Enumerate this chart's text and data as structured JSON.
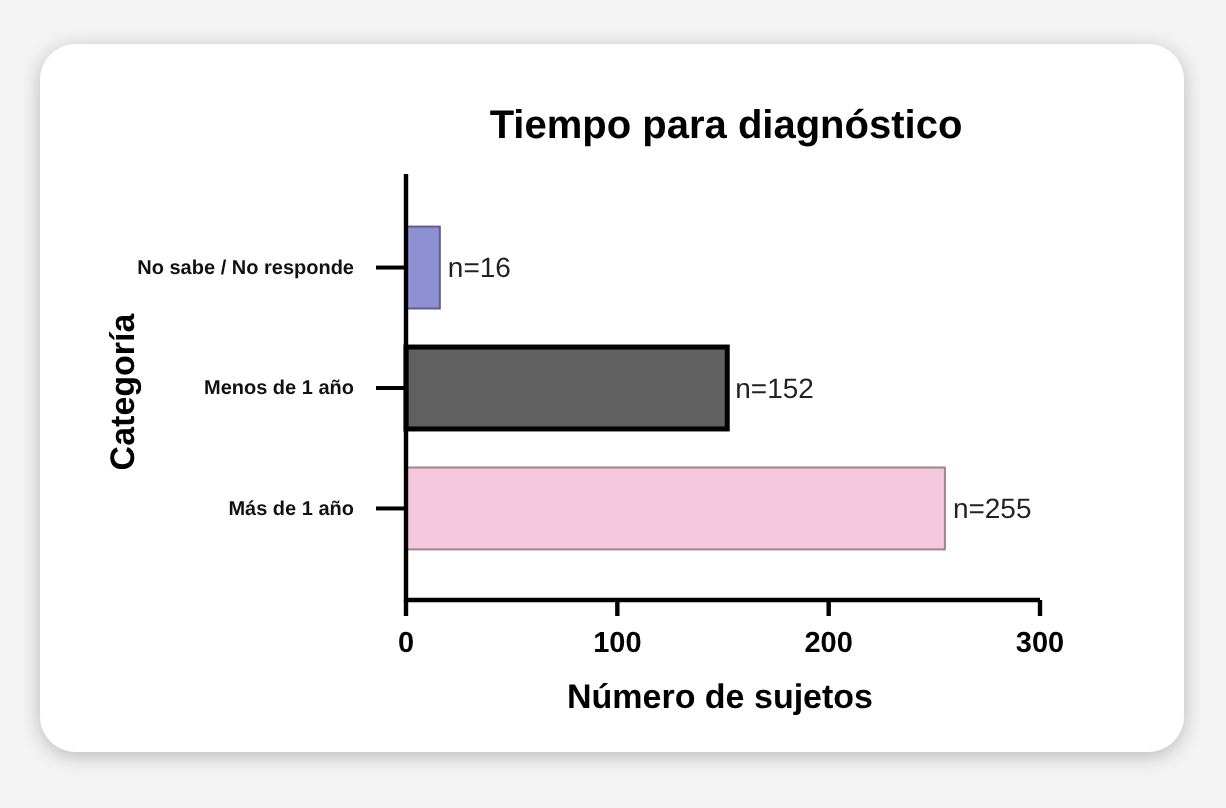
{
  "chart_data": {
    "type": "bar",
    "orientation": "horizontal",
    "title": "Tiempo para diagnóstico",
    "xlabel": "Número de sujetos",
    "ylabel": "Categoría",
    "categories": [
      "No sabe / No responde",
      "Menos de 1 año",
      "Más de 1 año"
    ],
    "values": [
      16,
      152,
      255
    ],
    "colors": [
      "#8f90d2",
      "#606060",
      "#f5c8de"
    ],
    "value_labels": [
      "n=16",
      "n=152",
      "n=255"
    ],
    "xlim": [
      0,
      300
    ],
    "xticks": [
      0,
      100,
      200,
      300
    ]
  }
}
